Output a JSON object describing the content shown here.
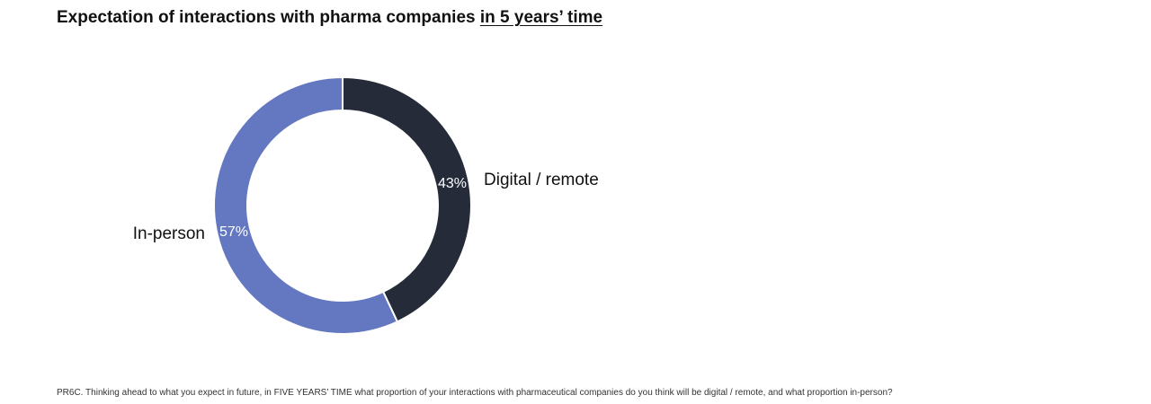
{
  "title": {
    "main": "Expectation of interactions with pharma companies ",
    "highlight": "in 5 years’ time"
  },
  "chart_data": {
    "type": "pie",
    "style": "donut",
    "slices": [
      {
        "label": "Digital / remote",
        "value": 43,
        "value_label": "43%",
        "color": "#252b39"
      },
      {
        "label": "In-person",
        "value": 57,
        "value_label": "57%",
        "color": "#6478c2"
      }
    ]
  },
  "footnote": "PR6C. Thinking ahead to what you expect in future, in FIVE YEARS’ TIME what proportion of your interactions with pharmaceutical companies do you think will be digital / remote, and what proportion in-person?"
}
